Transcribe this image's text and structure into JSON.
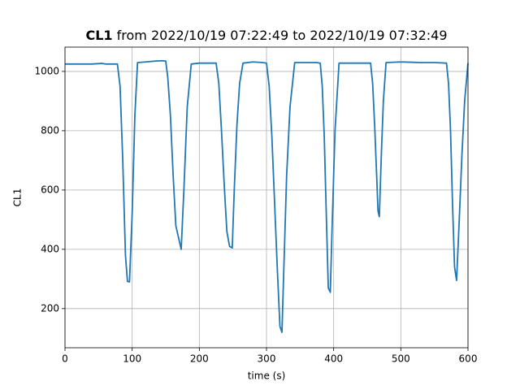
{
  "chart_data": {
    "type": "line",
    "title": {
      "bold": "CL1",
      "rest": "from 2022/10/19 07:22:49 to 2022/10/19 07:32:49"
    },
    "xlabel": "time (s)",
    "ylabel": "CL1",
    "xlim": [
      0,
      600
    ],
    "xticks": [
      0,
      100,
      200,
      300,
      400,
      500,
      600
    ],
    "ylim": [
      68,
      1082
    ],
    "yticks": [
      200,
      400,
      600,
      800,
      1000
    ],
    "grid": true,
    "x": [
      0,
      20,
      40,
      55,
      60,
      70,
      78,
      82,
      86,
      90,
      93,
      96,
      100,
      104,
      108,
      120,
      135,
      145,
      150,
      153,
      157,
      161,
      165,
      170,
      173,
      177,
      182,
      188,
      200,
      215,
      225,
      229,
      233,
      237,
      241,
      245,
      249,
      252,
      256,
      260,
      265,
      280,
      295,
      300,
      304,
      308,
      312,
      316,
      320,
      323,
      326,
      330,
      335,
      342,
      360,
      375,
      380,
      383,
      386,
      389,
      392,
      395,
      398,
      402,
      408,
      430,
      455,
      458,
      461,
      464,
      466,
      468,
      471,
      474,
      478,
      500,
      530,
      550,
      568,
      571,
      574,
      577,
      580,
      583,
      587,
      591,
      595,
      600
    ],
    "series": [
      {
        "name": "CL1",
        "color": "#1f77b4",
        "values": [
          1025,
          1025,
          1025,
          1027,
          1025,
          1025,
          1025,
          950,
          700,
          380,
          292,
          290,
          520,
          850,
          1030,
          1032,
          1035,
          1036,
          1035,
          980,
          850,
          650,
          480,
          430,
          400,
          600,
          880,
          1025,
          1028,
          1028,
          1028,
          960,
          800,
          620,
          460,
          410,
          405,
          600,
          820,
          960,
          1028,
          1032,
          1030,
          1028,
          950,
          780,
          560,
          340,
          140,
          120,
          350,
          650,
          880,
          1030,
          1030,
          1030,
          1028,
          950,
          780,
          520,
          270,
          255,
          500,
          800,
          1028,
          1028,
          1028,
          960,
          820,
          650,
          530,
          510,
          720,
          900,
          1030,
          1032,
          1030,
          1030,
          1028,
          960,
          800,
          550,
          340,
          295,
          500,
          720,
          900,
          1028
        ]
      }
    ]
  }
}
